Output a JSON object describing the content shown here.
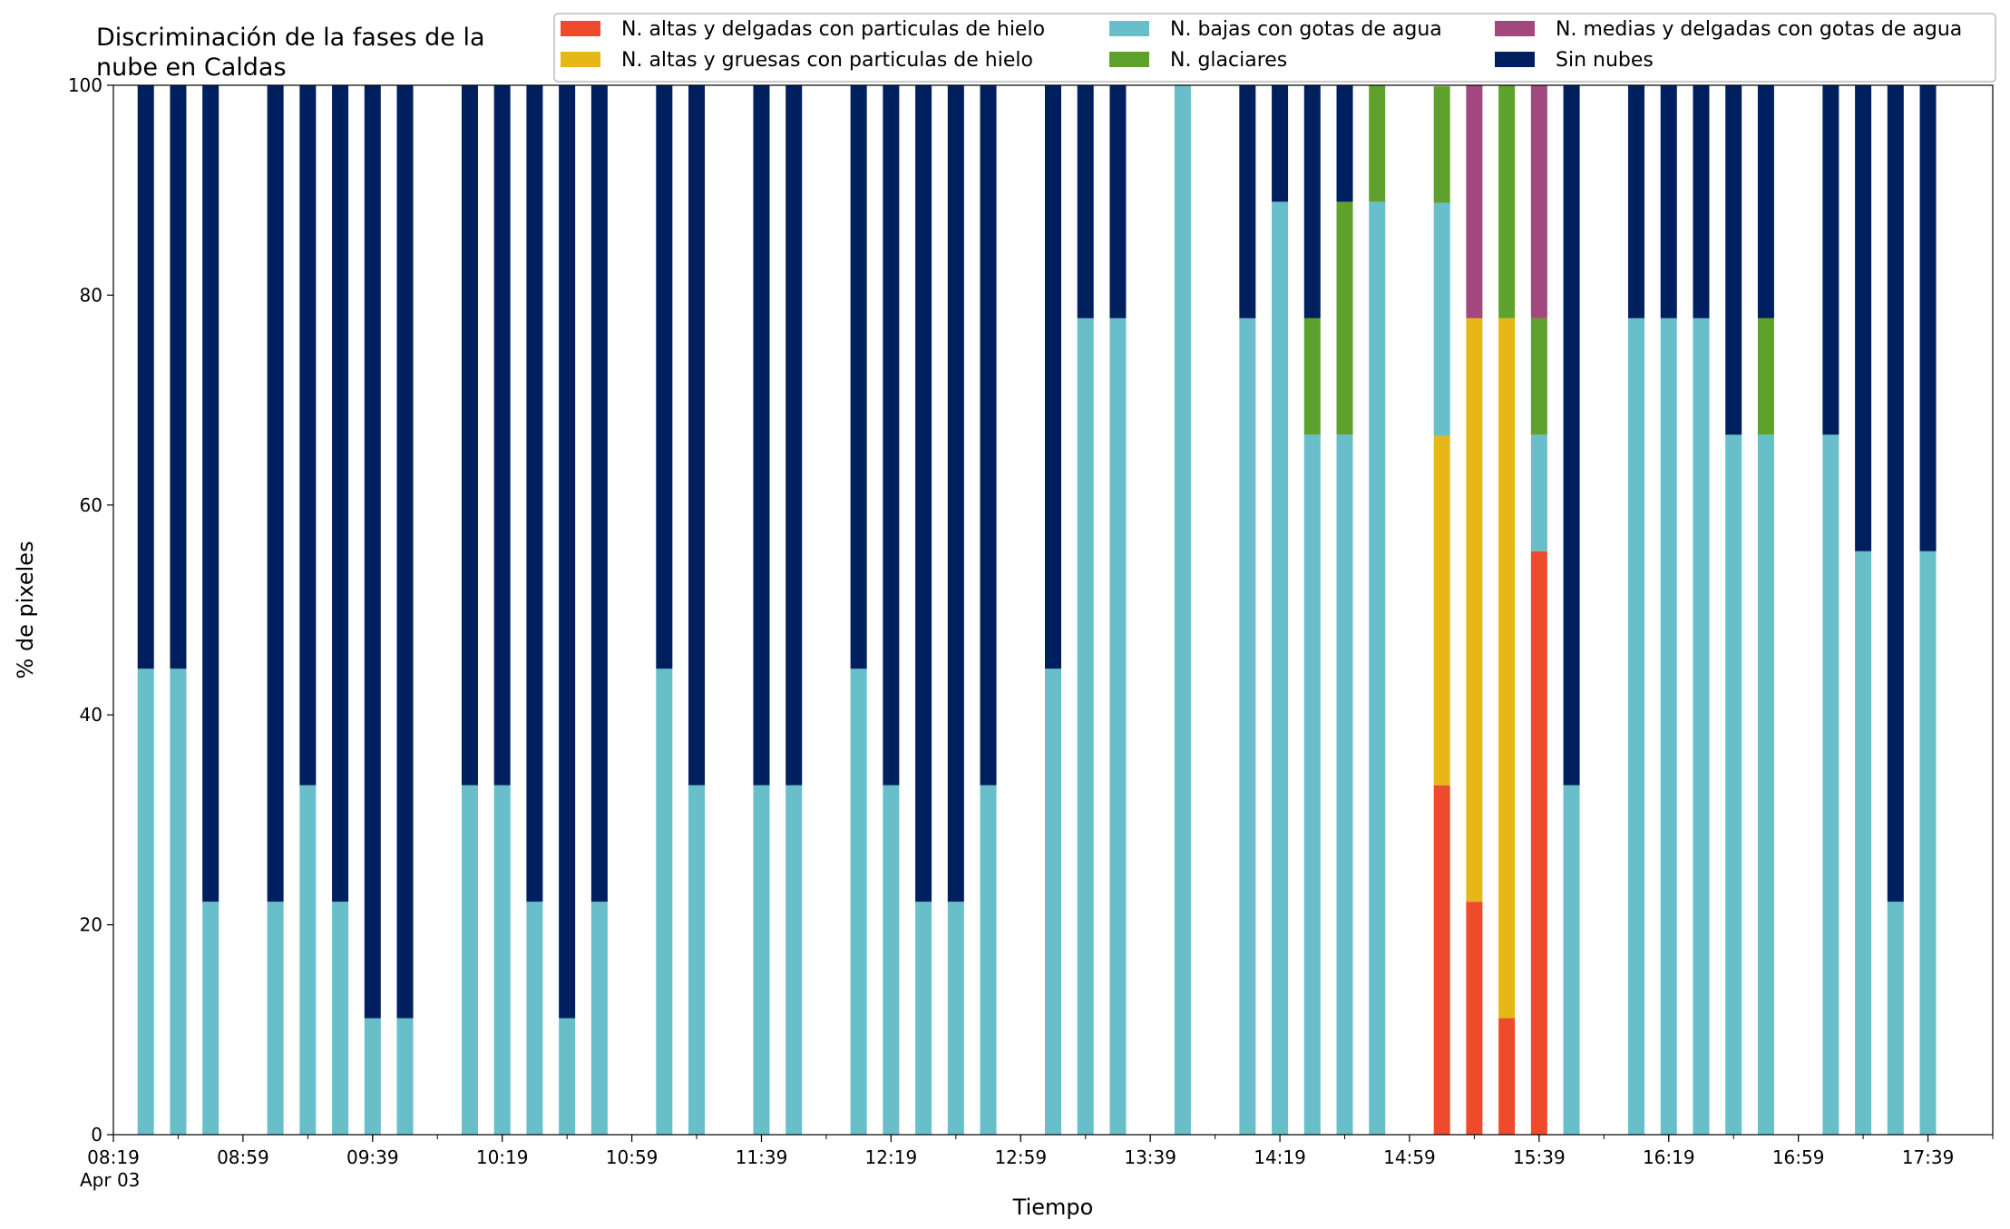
{
  "chart_data": {
    "type": "bar",
    "stacked": true,
    "title": "Discriminación de la fases de la nube en Caldas",
    "title_lines": [
      "Discriminación de la fases de la",
      "nube en Caldas"
    ],
    "xlabel": "Tiempo",
    "ylabel": "% de pixeles",
    "ylim": [
      0,
      100
    ],
    "yticks": [
      0,
      20,
      40,
      60,
      80,
      100
    ],
    "xlim": [
      "08:19",
      "17:59"
    ],
    "xtick_labels": [
      "08:19",
      "08:59",
      "09:39",
      "10:19",
      "10:59",
      "11:39",
      "12:19",
      "12:59",
      "13:39",
      "14:19",
      "14:59",
      "15:39",
      "16:19",
      "16:59",
      "17:39"
    ],
    "xtick_sublabel": "Apr 03",
    "legend": {
      "placement": "top-right",
      "columns": 3
    },
    "grid": false,
    "x": [
      "08:29",
      "08:39",
      "08:49",
      "09:09",
      "09:19",
      "09:29",
      "09:39",
      "09:49",
      "10:09",
      "10:19",
      "10:29",
      "10:39",
      "10:49",
      "11:09",
      "11:19",
      "11:39",
      "11:49",
      "12:09",
      "12:19",
      "12:29",
      "12:39",
      "12:49",
      "13:09",
      "13:19",
      "13:29",
      "13:49",
      "14:09",
      "14:19",
      "14:29",
      "14:39",
      "14:49",
      "15:09",
      "15:19",
      "15:29",
      "15:39",
      "15:49",
      "16:09",
      "16:19",
      "16:29",
      "16:39",
      "16:49",
      "17:09",
      "17:19",
      "17:29",
      "17:39"
    ],
    "series": [
      {
        "name": "N. altas y delgadas con particulas de hielo",
        "color": "#ee4a2c",
        "values": [
          0,
          0,
          0,
          0,
          0,
          0,
          0,
          0,
          0,
          0,
          0,
          0,
          0,
          0,
          0,
          0,
          0,
          0,
          0,
          0,
          0,
          0,
          0,
          0,
          0,
          0,
          0,
          0,
          0,
          0,
          0,
          33.3,
          22.2,
          11.1,
          55.6,
          0,
          0,
          0,
          0,
          0,
          0,
          0,
          0,
          0,
          0
        ]
      },
      {
        "name": "N. altas y gruesas con particulas de hielo",
        "color": "#e5b818",
        "values": [
          0,
          0,
          0,
          0,
          0,
          0,
          0,
          0,
          0,
          0,
          0,
          0,
          0,
          0,
          0,
          0,
          0,
          0,
          0,
          0,
          0,
          0,
          0,
          0,
          0,
          0,
          0,
          0,
          0,
          0,
          0,
          33.3,
          55.6,
          66.7,
          0,
          0,
          0,
          0,
          0,
          0,
          0,
          0,
          0,
          0,
          0
        ]
      },
      {
        "name": "N. bajas con gotas de agua",
        "color": "#68bfca",
        "values": [
          44.4,
          44.4,
          22.2,
          22.2,
          33.3,
          22.2,
          11.1,
          11.1,
          33.3,
          33.3,
          22.2,
          11.1,
          22.2,
          44.4,
          33.3,
          33.3,
          33.3,
          44.4,
          33.3,
          22.2,
          22.2,
          33.3,
          44.4,
          77.8,
          77.8,
          100,
          77.8,
          88.9,
          66.7,
          66.7,
          88.9,
          22.2,
          0,
          0,
          11.1,
          33.3,
          77.8,
          77.8,
          77.8,
          66.7,
          66.7,
          66.7,
          55.6,
          22.2,
          55.6
        ]
      },
      {
        "name": "N. glaciares",
        "color": "#5ea22d",
        "values": [
          0,
          0,
          0,
          0,
          0,
          0,
          0,
          0,
          0,
          0,
          0,
          0,
          0,
          0,
          0,
          0,
          0,
          0,
          0,
          0,
          0,
          0,
          0,
          0,
          0,
          0,
          0,
          0,
          11.1,
          22.2,
          11.1,
          11.1,
          0,
          22.2,
          11.1,
          0,
          0,
          0,
          0,
          0,
          11.1,
          0,
          0,
          0,
          0
        ]
      },
      {
        "name": "N. medias y delgadas con gotas de agua",
        "color": "#a2487e",
        "values": [
          0,
          0,
          0,
          0,
          0,
          0,
          0,
          0,
          0,
          0,
          0,
          0,
          0,
          0,
          0,
          0,
          0,
          0,
          0,
          0,
          0,
          0,
          0,
          0,
          0,
          0,
          0,
          0,
          0,
          0,
          0,
          0,
          22.2,
          0,
          22.2,
          0,
          0,
          0,
          0,
          0,
          0,
          0,
          0,
          0,
          0
        ]
      },
      {
        "name": "Sin nubes",
        "color": "#001f5f",
        "values": [
          55.6,
          55.6,
          77.8,
          77.8,
          66.7,
          77.8,
          88.9,
          88.9,
          66.7,
          66.7,
          77.8,
          88.9,
          77.8,
          55.6,
          66.7,
          66.7,
          66.7,
          55.6,
          66.7,
          77.8,
          77.8,
          66.7,
          55.6,
          22.2,
          22.2,
          0,
          22.2,
          11.1,
          22.2,
          11.1,
          0,
          0,
          0,
          0,
          0,
          66.7,
          22.2,
          22.2,
          22.2,
          33.3,
          22.2,
          33.3,
          44.4,
          77.8,
          44.4
        ]
      }
    ]
  }
}
